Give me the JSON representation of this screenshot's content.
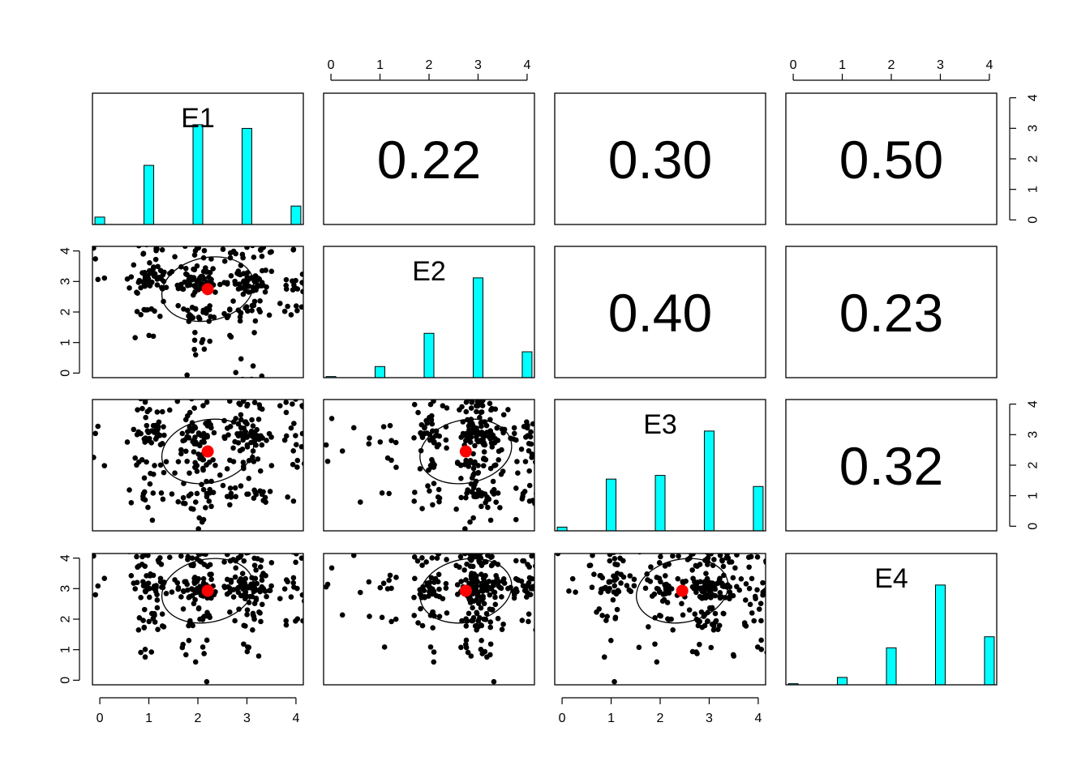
{
  "chart_data": {
    "type": "scatter-matrix",
    "variables": [
      "E1",
      "E2",
      "E3",
      "E4"
    ],
    "ticks": [
      "0",
      "1",
      "2",
      "3",
      "4"
    ],
    "axis_range": [
      -0.15,
      4.15
    ],
    "correlations": [
      {
        "row": 0,
        "col": 1,
        "label": "0.22"
      },
      {
        "row": 0,
        "col": 2,
        "label": "0.30"
      },
      {
        "row": 0,
        "col": 3,
        "label": "0.50"
      },
      {
        "row": 1,
        "col": 2,
        "label": "0.40"
      },
      {
        "row": 1,
        "col": 3,
        "label": "0.23"
      },
      {
        "row": 2,
        "col": 3,
        "label": "0.32"
      }
    ],
    "histograms": {
      "E1": [
        0.02,
        0.16,
        0.27,
        0.26,
        0.05
      ],
      "E2": [
        0.003,
        0.03,
        0.12,
        0.27,
        0.07
      ],
      "E3": [
        0.01,
        0.14,
        0.15,
        0.27,
        0.12
      ],
      "E4": [
        0.003,
        0.02,
        0.1,
        0.27,
        0.13
      ]
    },
    "category_proportions": {
      "E1": [
        0.03,
        0.21,
        0.35,
        0.34,
        0.07
      ],
      "E2": [
        0.01,
        0.06,
        0.24,
        0.55,
        0.14
      ],
      "E3": [
        0.02,
        0.2,
        0.22,
        0.39,
        0.17
      ],
      "E4": [
        0.01,
        0.04,
        0.19,
        0.51,
        0.25
      ]
    },
    "means": {
      "E1": 2.2,
      "E2": 2.75,
      "E3": 2.45,
      "E4": 2.93
    },
    "n_points": 320,
    "colors": {
      "histogram": "#00ffff",
      "mean_point": "#ff0000",
      "points": "#000000"
    }
  }
}
